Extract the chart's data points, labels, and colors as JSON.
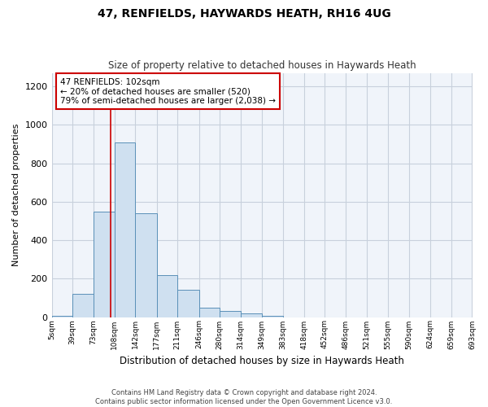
{
  "title": "47, RENFIELDS, HAYWARDS HEATH, RH16 4UG",
  "subtitle": "Size of property relative to detached houses in Haywards Heath",
  "xlabel": "Distribution of detached houses by size in Haywards Heath",
  "ylabel": "Number of detached properties",
  "footer_line1": "Contains HM Land Registry data © Crown copyright and database right 2024.",
  "footer_line2": "Contains public sector information licensed under the Open Government Licence v3.0.",
  "bar_color": "#cfe0f0",
  "bar_edge_color": "#5a90b8",
  "grid_color": "#c8d0dc",
  "annotation_line1": "47 RENFIELDS: 102sqm",
  "annotation_line2": "← 20% of detached houses are smaller (520)",
  "annotation_line3": "79% of semi-detached houses are larger (2,038) →",
  "annotation_box_color": "#cc0000",
  "vline_color": "#cc0000",
  "vline_x": 102,
  "bins": [
    5,
    39,
    73,
    108,
    142,
    177,
    211,
    246,
    280,
    314,
    349,
    383,
    418,
    452,
    486,
    521,
    555,
    590,
    624,
    659,
    693
  ],
  "counts": [
    5,
    120,
    550,
    910,
    540,
    220,
    140,
    50,
    30,
    20,
    5,
    0,
    0,
    0,
    0,
    0,
    0,
    0,
    0,
    0
  ],
  "ylim": [
    0,
    1270
  ],
  "yticks": [
    0,
    200,
    400,
    600,
    800,
    1000,
    1200
  ],
  "tick_labels": [
    "5sqm",
    "39sqm",
    "73sqm",
    "108sqm",
    "142sqm",
    "177sqm",
    "211sqm",
    "246sqm",
    "280sqm",
    "314sqm",
    "349sqm",
    "383sqm",
    "418sqm",
    "452sqm",
    "486sqm",
    "521sqm",
    "555sqm",
    "590sqm",
    "624sqm",
    "659sqm",
    "693sqm"
  ],
  "figsize": [
    6.0,
    5.0
  ],
  "dpi": 100,
  "bg_color": "#f0f4fa"
}
